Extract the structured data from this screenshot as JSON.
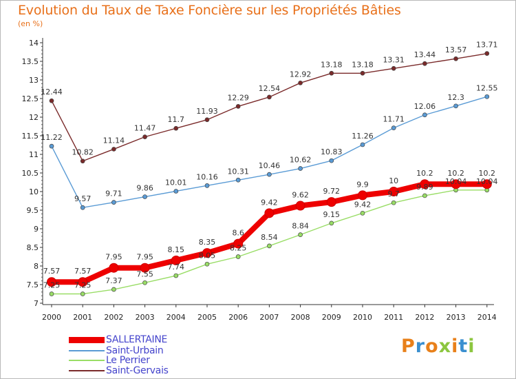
{
  "chart_data": {
    "type": "line",
    "title": "Evolution du Taux de Taxe Foncière sur les Propriétés Bâties",
    "ylabel": "(en %)",
    "xlabel": "",
    "categories": [
      "2000",
      "2001",
      "2002",
      "2003",
      "2004",
      "2005",
      "2006",
      "2007",
      "2008",
      "2009",
      "2010",
      "2011",
      "2012",
      "2013",
      "2014"
    ],
    "yticks": [
      "7",
      "7.5",
      "8",
      "8.5",
      "9",
      "9.5",
      "10",
      "10.5",
      "11",
      "11.5",
      "12",
      "12.5",
      "13",
      "13.5",
      "14"
    ],
    "ylim": [
      7,
      14
    ],
    "grid": false,
    "legend_position": "bottom-left",
    "series": [
      {
        "name": "SALLERTAINE",
        "color": "#ee0000",
        "labels": [
          "7.57",
          "7.57",
          "7.95",
          "7.95",
          "8.15",
          "8.35",
          "8.6",
          "9.42",
          "9.62",
          "9.72",
          "9.9",
          "10",
          "10.2",
          "10.2",
          "10.2"
        ],
        "values": [
          7.57,
          7.57,
          7.95,
          7.95,
          8.15,
          8.35,
          8.6,
          9.42,
          9.62,
          9.72,
          9.9,
          10,
          10.2,
          10.2,
          10.2
        ]
      },
      {
        "name": "Saint-Urbain",
        "color": "#5a9bd5",
        "labels": [
          "11.22",
          "9.57",
          "9.71",
          "9.86",
          "10.01",
          "10.16",
          "10.31",
          "10.46",
          "10.62",
          "10.83",
          "11.26",
          "11.71",
          "12.06",
          "12.3",
          "12.55"
        ],
        "values": [
          11.22,
          9.57,
          9.71,
          9.86,
          10.01,
          10.16,
          10.31,
          10.46,
          10.62,
          10.83,
          11.26,
          11.71,
          12.06,
          12.3,
          12.55
        ]
      },
      {
        "name": "Le Perrier",
        "color": "#99dd66",
        "labels": [
          "7.25",
          "7.25",
          "7.37",
          "7.55",
          "7.74",
          "8.05",
          "8.25",
          "8.54",
          "8.84",
          "9.15",
          "9.42",
          "9.7",
          "9.89",
          "10.04",
          "10.04"
        ],
        "values": [
          7.25,
          7.25,
          7.37,
          7.55,
          7.74,
          8.05,
          8.25,
          8.54,
          8.84,
          9.15,
          9.42,
          9.7,
          9.89,
          10.04,
          10.04
        ]
      },
      {
        "name": "Saint-Gervais",
        "color": "#7a2a2a",
        "labels": [
          "12.44",
          "10.82",
          "11.14",
          "11.47",
          "11.7",
          "11.93",
          "12.29",
          "12.54",
          "12.92",
          "13.18",
          "13.18",
          "13.31",
          "13.44",
          "13.57",
          "13.71"
        ],
        "values": [
          12.44,
          10.82,
          11.14,
          11.47,
          11.7,
          11.93,
          12.29,
          12.54,
          12.92,
          13.18,
          13.18,
          13.31,
          13.44,
          13.57,
          13.71
        ]
      }
    ]
  },
  "brand": {
    "name": "Proxiti",
    "colors": [
      "#e8801a",
      "#3a8fd0",
      "#e8801a",
      "#8cc63f",
      "#e8801a",
      "#3a8fd0",
      "#8cc63f"
    ]
  }
}
